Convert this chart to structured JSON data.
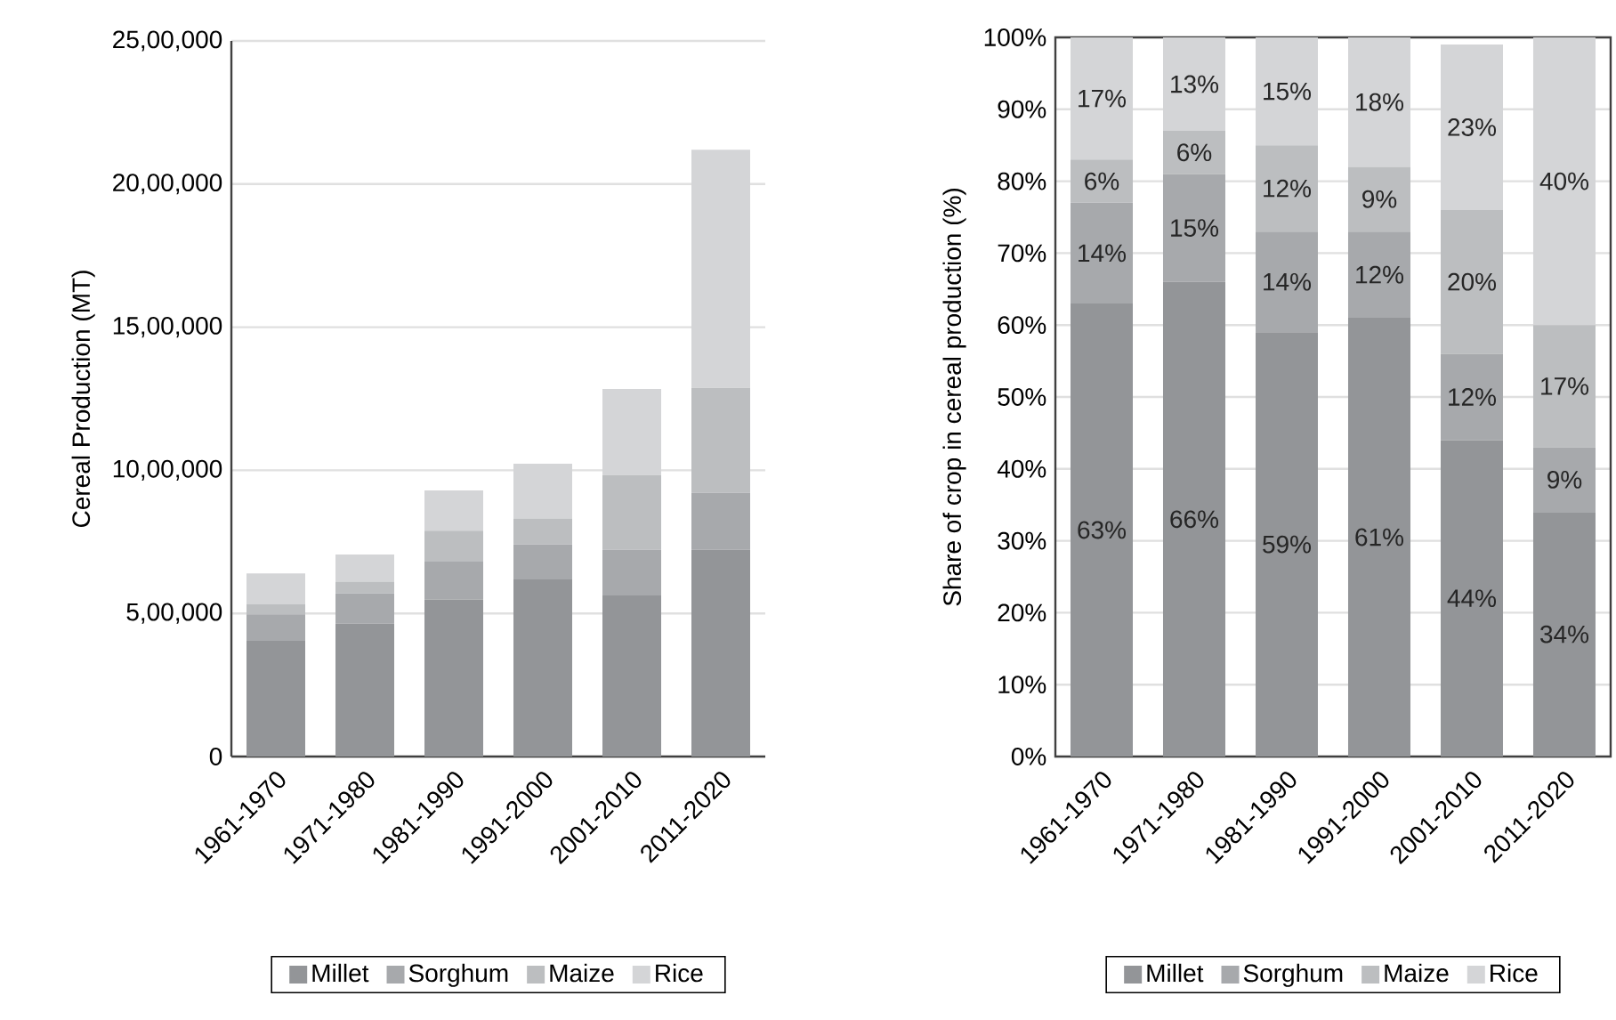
{
  "chart_data": [
    {
      "type": "bar",
      "stacked": true,
      "ylabel": "Cereal Production (MT)",
      "categories": [
        "1961-1970",
        "1971-1980",
        "1981-1990",
        "1991-2000",
        "2001-2010",
        "2011-2020"
      ],
      "series": [
        {
          "name": "Millet",
          "color": "#939598",
          "values": [
            404000,
            464000,
            549000,
            619000,
            563000,
            722000
          ]
        },
        {
          "name": "Sorghum",
          "color": "#a7a9ac",
          "values": [
            93000,
            106000,
            132000,
            122000,
            159000,
            199000
          ]
        },
        {
          "name": "Maize",
          "color": "#bcbec0",
          "values": [
            35000,
            41000,
            108000,
            91000,
            261000,
            367000
          ]
        },
        {
          "name": "Rice",
          "color": "#d4d5d7",
          "values": [
            108000,
            95000,
            141000,
            191000,
            301000,
            832000
          ]
        }
      ],
      "ylim": [
        0,
        2500000
      ],
      "yticks": [
        0,
        {
          "value": 500000,
          "label": "5,00,000"
        },
        {
          "value": 1000000,
          "label": "10,00,000"
        },
        {
          "value": 1500000,
          "label": "15,00,000"
        },
        {
          "value": 2000000,
          "label": "20,00,000"
        },
        {
          "value": 2500000,
          "label": "25,00,000"
        }
      ],
      "grid": "y",
      "legend": "bottom"
    },
    {
      "type": "bar",
      "stacked": true,
      "ylabel": "Share of crop in cereal production (%)",
      "categories": [
        "1961-1970",
        "1971-1980",
        "1981-1990",
        "1991-2000",
        "2001-2010",
        "2011-2020"
      ],
      "series": [
        {
          "name": "Millet",
          "color": "#939598",
          "values": [
            63,
            66,
            59,
            61,
            44,
            34
          ],
          "value_labels": [
            "63%",
            "66%",
            "59%",
            "61%",
            "44%",
            "34%"
          ]
        },
        {
          "name": "Sorghum",
          "color": "#a7a9ac",
          "values": [
            14,
            15,
            14,
            12,
            12,
            9
          ],
          "value_labels": [
            "14%",
            "15%",
            "14%",
            "12%",
            "12%",
            "9%"
          ]
        },
        {
          "name": "Maize",
          "color": "#bcbec0",
          "values": [
            6,
            6,
            12,
            9,
            20,
            17
          ],
          "value_labels": [
            "6%",
            "6%",
            "12%",
            "9%",
            "20%",
            "17%"
          ]
        },
        {
          "name": "Rice",
          "color": "#d4d5d7",
          "values": [
            17,
            13,
            15,
            18,
            23,
            40
          ],
          "value_labels": [
            "17%",
            "13%",
            "15%",
            "18%",
            "23%",
            "40%"
          ]
        }
      ],
      "ylim": [
        0,
        100
      ],
      "yticks": [
        {
          "value": 0,
          "label": "0%"
        },
        {
          "value": 10,
          "label": "10%"
        },
        {
          "value": 20,
          "label": "20%"
        },
        {
          "value": 30,
          "label": "30%"
        },
        {
          "value": 40,
          "label": "40%"
        },
        {
          "value": 50,
          "label": "50%"
        },
        {
          "value": 60,
          "label": "60%"
        },
        {
          "value": 70,
          "label": "70%"
        },
        {
          "value": 80,
          "label": "80%"
        },
        {
          "value": 90,
          "label": "90%"
        },
        {
          "value": 100,
          "label": "100%"
        }
      ],
      "grid": "y",
      "legend": "bottom"
    }
  ]
}
